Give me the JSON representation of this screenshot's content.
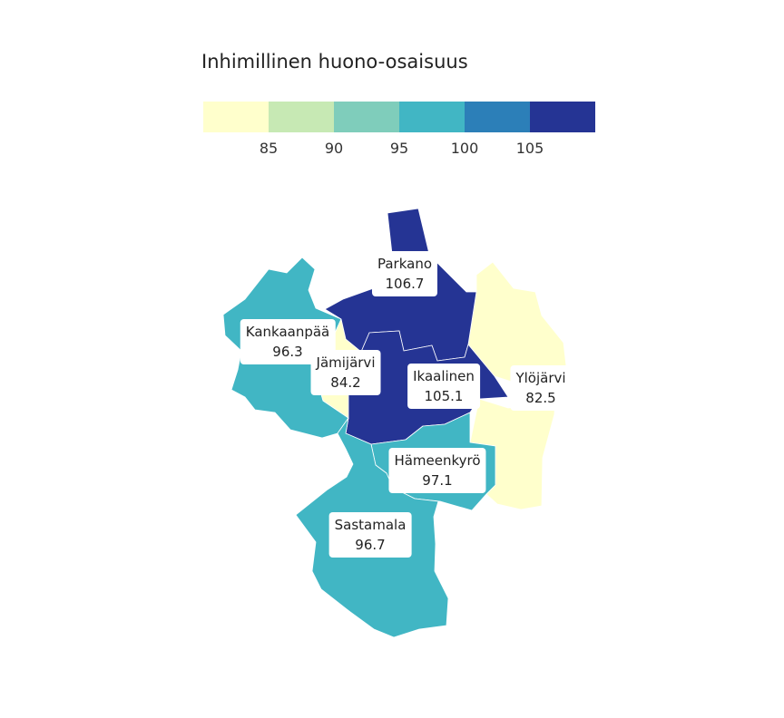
{
  "legend": {
    "title": "Inhimillinen huono-osaisuus",
    "colors": [
      "#ffffcc",
      "#c7e9b4",
      "#7fcdbb",
      "#41b6c4",
      "#2c7fb8",
      "#253494"
    ],
    "ticks": [
      "85",
      "90",
      "95",
      "100",
      "105"
    ]
  },
  "regions": [
    {
      "name": "Parkano",
      "value": "106.7",
      "color": "#253494"
    },
    {
      "name": "Kankaanpää",
      "value": "96.3",
      "color": "#41b6c4"
    },
    {
      "name": "Jämijärvi",
      "value": "84.2",
      "color": "#ffffcc"
    },
    {
      "name": "Ikaalinen",
      "value": "105.1",
      "color": "#253494"
    },
    {
      "name": "Ylöjärvi",
      "value": "82.5",
      "color": "#ffffcc"
    },
    {
      "name": "Hämeenkyrö",
      "value": "97.1",
      "color": "#41b6c4"
    },
    {
      "name": "Sastamala",
      "value": "96.7",
      "color": "#41b6c4"
    }
  ]
}
